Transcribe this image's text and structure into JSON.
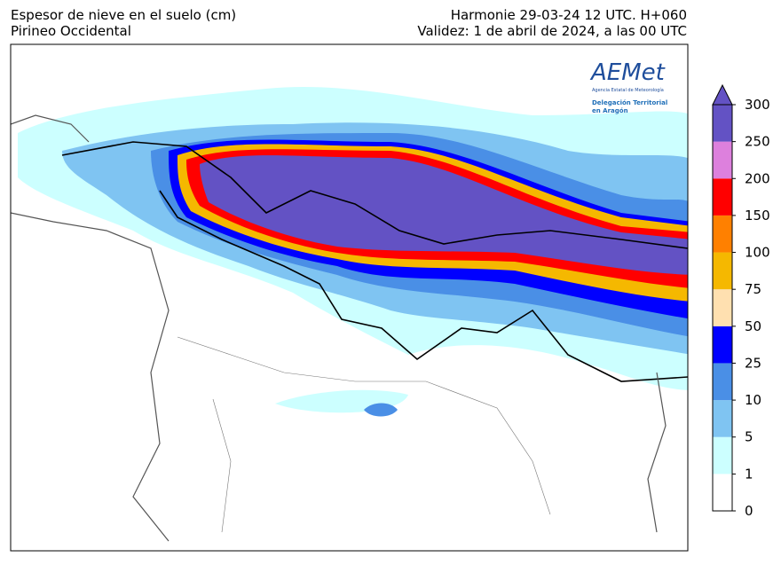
{
  "header": {
    "left": [
      "Espesor de nieve en el suelo (cm)",
      "Pirineo Occidental"
    ],
    "right": [
      "Harmonie 29-03-24 12 UTC. H+060",
      "Validez: 1 de abril de 2024, a las 00 UTC"
    ]
  },
  "logo": {
    "name": "AEMet",
    "agency": "Agencia Estatal de Meteorología",
    "office": [
      "Delegación Territorial",
      "en Aragón"
    ]
  },
  "colorbar": {
    "ticks": [
      0,
      1,
      5,
      10,
      25,
      50,
      75,
      100,
      150,
      200,
      250,
      300
    ],
    "colors": [
      "#ffffff",
      "#ccffff",
      "#7fc4f2",
      "#4a8fe6",
      "#0000ff",
      "#ffe0b0",
      "#f5b800",
      "#ff8000",
      "#ff0000",
      "#dd80dd",
      "#6352c4"
    ]
  }
}
